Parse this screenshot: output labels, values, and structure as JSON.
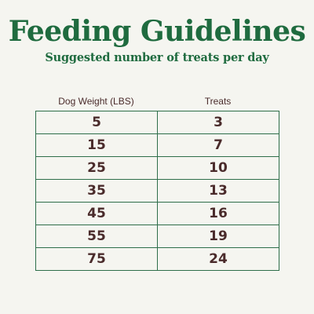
{
  "header": {
    "title": "Feeding Guidelines",
    "subtitle": "Suggested number of treats per day"
  },
  "table": {
    "columns": [
      "Dog Weight (LBS)",
      "Treats"
    ],
    "rows": [
      [
        "5",
        "3"
      ],
      [
        "15",
        "7"
      ],
      [
        "25",
        "10"
      ],
      [
        "35",
        "13"
      ],
      [
        "45",
        "16"
      ],
      [
        "55",
        "19"
      ],
      [
        "75",
        "24"
      ]
    ]
  },
  "colors": {
    "title": "#1f6b3f",
    "text": "#4a2b2b",
    "border": "#2e6e4a",
    "background": "#f5f5f0"
  }
}
